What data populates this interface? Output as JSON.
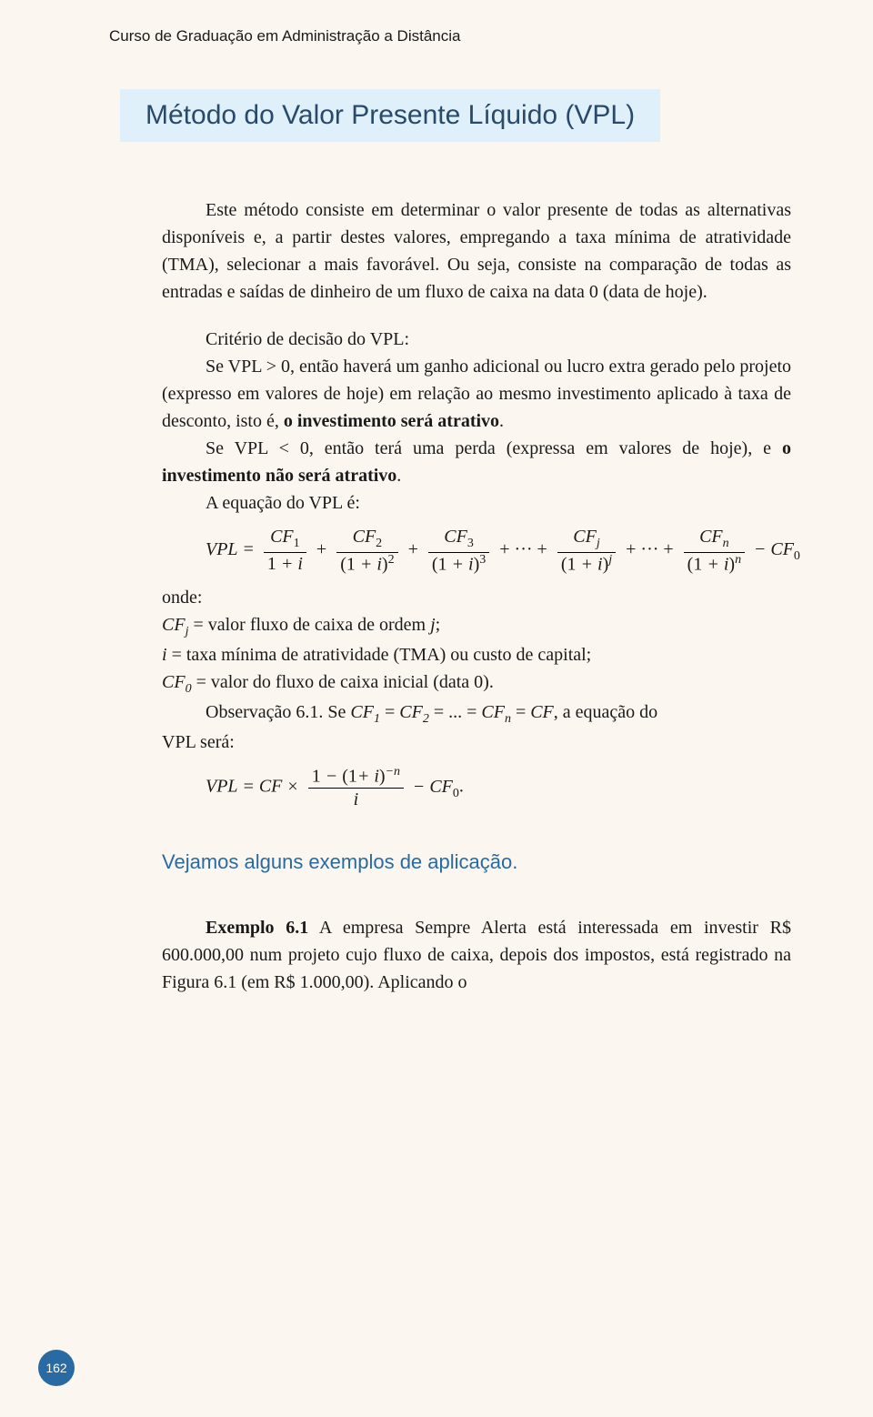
{
  "colors": {
    "page_bg": "#fbf6f0",
    "title_bg": "#dff0fa",
    "title_text": "#2a4a6a",
    "accent": "#2a6aa3",
    "body_text": "#1a1a1a"
  },
  "typography": {
    "header_font": "Arial",
    "header_size_pt": 13,
    "title_font": "Arial",
    "title_size_pt": 22,
    "body_font": "Georgia",
    "body_size_pt": 15,
    "callout_size_pt": 17,
    "formula_font": "Times New Roman"
  },
  "header": "Curso de Graduação em Administração a Distância",
  "title": "Método do Valor Presente Líquido (VPL)",
  "para1": "Este método consiste em determinar o valor presente de todas as alternativas disponíveis e, a partir destes valores, empregando a taxa mínima de atratividade (TMA), selecionar a mais favorável. Ou seja, consiste na comparação de todas as entradas e saídas de dinheiro de um fluxo de caixa na data 0 (data de hoje).",
  "criterio_label": "Critério de decisão do VPL:",
  "criterio1a": "Se VPL > 0, então haverá um ganho adicional ou lucro extra gerado pelo projeto (expresso em valores de hoje) em relação ao mesmo investimento aplicado à taxa de desconto, isto é, ",
  "criterio1b": "o investimento será atrativo",
  "criterio1c": ".",
  "criterio2a": "Se VPL < 0, então terá uma perda (expressa em valores de hoje), e ",
  "criterio2b": "o investimento não será atrativo",
  "criterio2c": ".",
  "eq_label": "A equação do VPL é:",
  "onde": "onde:",
  "def_cfj_a": "CF",
  "def_cfj_b": " = valor fluxo de caixa de ordem ",
  "def_cfj_c": ";",
  "def_i": " = taxa mínima de atratividade (TMA) ou custo de capital;",
  "def_cf0_a": "CF",
  "def_cf0_b": " = valor do fluxo de caixa inicial (data 0).",
  "obs_a": "Observação 6.1. Se ",
  "obs_b": " = ... = ",
  "obs_c": ", a equação do",
  "obs_d": "VPL será:",
  "callout": "Vejamos alguns exemplos de aplicação.",
  "ex_label": "Exemplo 6.1",
  "ex_text": " A empresa Sempre Alerta está interessada em investir R$ 600.000,00 num projeto cujo fluxo de caixa, depois dos impostos, está registrado na Figura 6.1 (em R$ 1.000,00). Aplicando o",
  "page_number": "162",
  "formula_main": {
    "lhs": "VPL",
    "terms": [
      {
        "num": "CF_1",
        "den": "1 + i"
      },
      {
        "num": "CF_2",
        "den": "(1 + i)^2"
      },
      {
        "num": "CF_3",
        "den": "(1 + i)^3"
      },
      {
        "num": "CF_j",
        "den": "(1 + i)^j"
      },
      {
        "num": "CF_n",
        "den": "(1 + i)^n"
      }
    ],
    "tail": "− CF_0"
  },
  "formula_simplified": {
    "expr": "VPL = CF × (1 − (1+i)^(−n)) / i − CF_0."
  }
}
